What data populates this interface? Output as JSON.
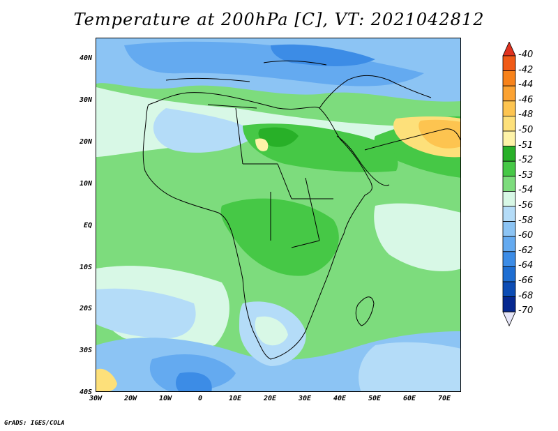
{
  "title": "Temperature at 200hPa [C], VT: 2021042812",
  "credit": "GrADS: IGES/COLA",
  "map": {
    "lat_labels": [
      "40N",
      "30N",
      "20N",
      "10N",
      "EQ",
      "10S",
      "20S",
      "30S",
      "40S"
    ],
    "lon_labels": [
      "30W",
      "20W",
      "10W",
      "0",
      "10E",
      "20E",
      "30E",
      "40E",
      "50E",
      "60E",
      "70E"
    ],
    "extent": {
      "lon": [
        -30,
        75
      ],
      "lat": [
        -40,
        45
      ]
    }
  },
  "colorbar": {
    "labels": [
      "-40",
      "-42",
      "-44",
      "-46",
      "-48",
      "-50",
      "-51",
      "-52",
      "-53",
      "-54",
      "-56",
      "-58",
      "-60",
      "-62",
      "-64",
      "-66",
      "-68",
      "-70"
    ],
    "colors": [
      "#e0321e",
      "#f05a16",
      "#f7821a",
      "#fba232",
      "#fdc450",
      "#fde07a",
      "#fef3a8",
      "#28b028",
      "#46c846",
      "#7ddc7d",
      "#d8f8e6",
      "#b4dcf8",
      "#8cc4f4",
      "#64aaf0",
      "#3c8ce6",
      "#1e6ed2",
      "#0c4cb4",
      "#062890",
      "#e6e6f8"
    ]
  }
}
